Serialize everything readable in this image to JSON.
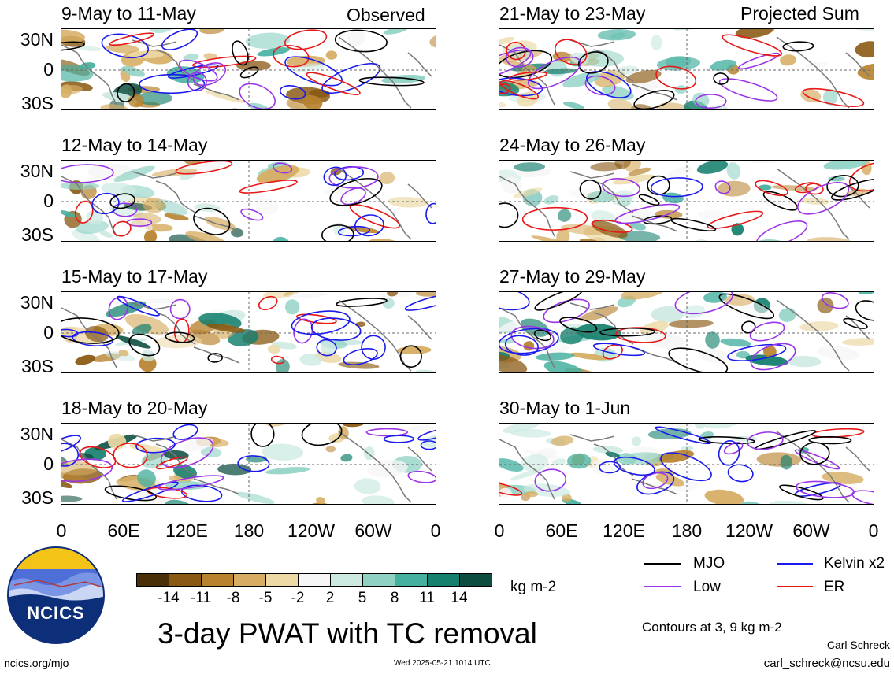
{
  "observed_label": "Observed",
  "projected_label": "Projected Sum",
  "panels_left": [
    {
      "title": "9-May to 11-May"
    },
    {
      "title": "12-May to 14-May"
    },
    {
      "title": "15-May to 17-May"
    },
    {
      "title": "18-May to 20-May"
    }
  ],
  "panels_right": [
    {
      "title": "21-May to 23-May"
    },
    {
      "title": "24-May to 26-May"
    },
    {
      "title": "27-May to 29-May"
    },
    {
      "title": "30-May to 1-Jun"
    }
  ],
  "lat_labels": [
    "30N",
    "0",
    "30S"
  ],
  "lon_labels": [
    "0",
    "60E",
    "120E",
    "180",
    "120W",
    "60W",
    "0"
  ],
  "colorbar": {
    "unit": "kg m-2",
    "labels": [
      "-14",
      "-11",
      "-8",
      "-5",
      "-2",
      "2",
      "5",
      "8",
      "11",
      "14"
    ],
    "colors": [
      "#4a3008",
      "#8a5a14",
      "#b8822e",
      "#d6ad62",
      "#ecd9a6",
      "#f6f6f6",
      "#cdeae2",
      "#8fd2c4",
      "#46b0a0",
      "#15806e",
      "#0c4d40"
    ]
  },
  "legend": [
    {
      "label": "MJO",
      "color": "#000000"
    },
    {
      "label": "Kelvin x2",
      "color": "#1a1aee"
    },
    {
      "label": "Low",
      "color": "#9a34e8"
    },
    {
      "label": "ER",
      "color": "#e81818"
    }
  ],
  "contour_note": "Contours at 3, 9 kg m-2",
  "main_title": "3-day PWAT with TC removal",
  "logo_text": "NCICS",
  "footer_left": "ncics.org/mjo",
  "footer_center": "Wed 2025-05-21 1014 UTC",
  "author_name": "Carl Schreck",
  "author_email": "carl_schreck@ncsu.edu"
}
